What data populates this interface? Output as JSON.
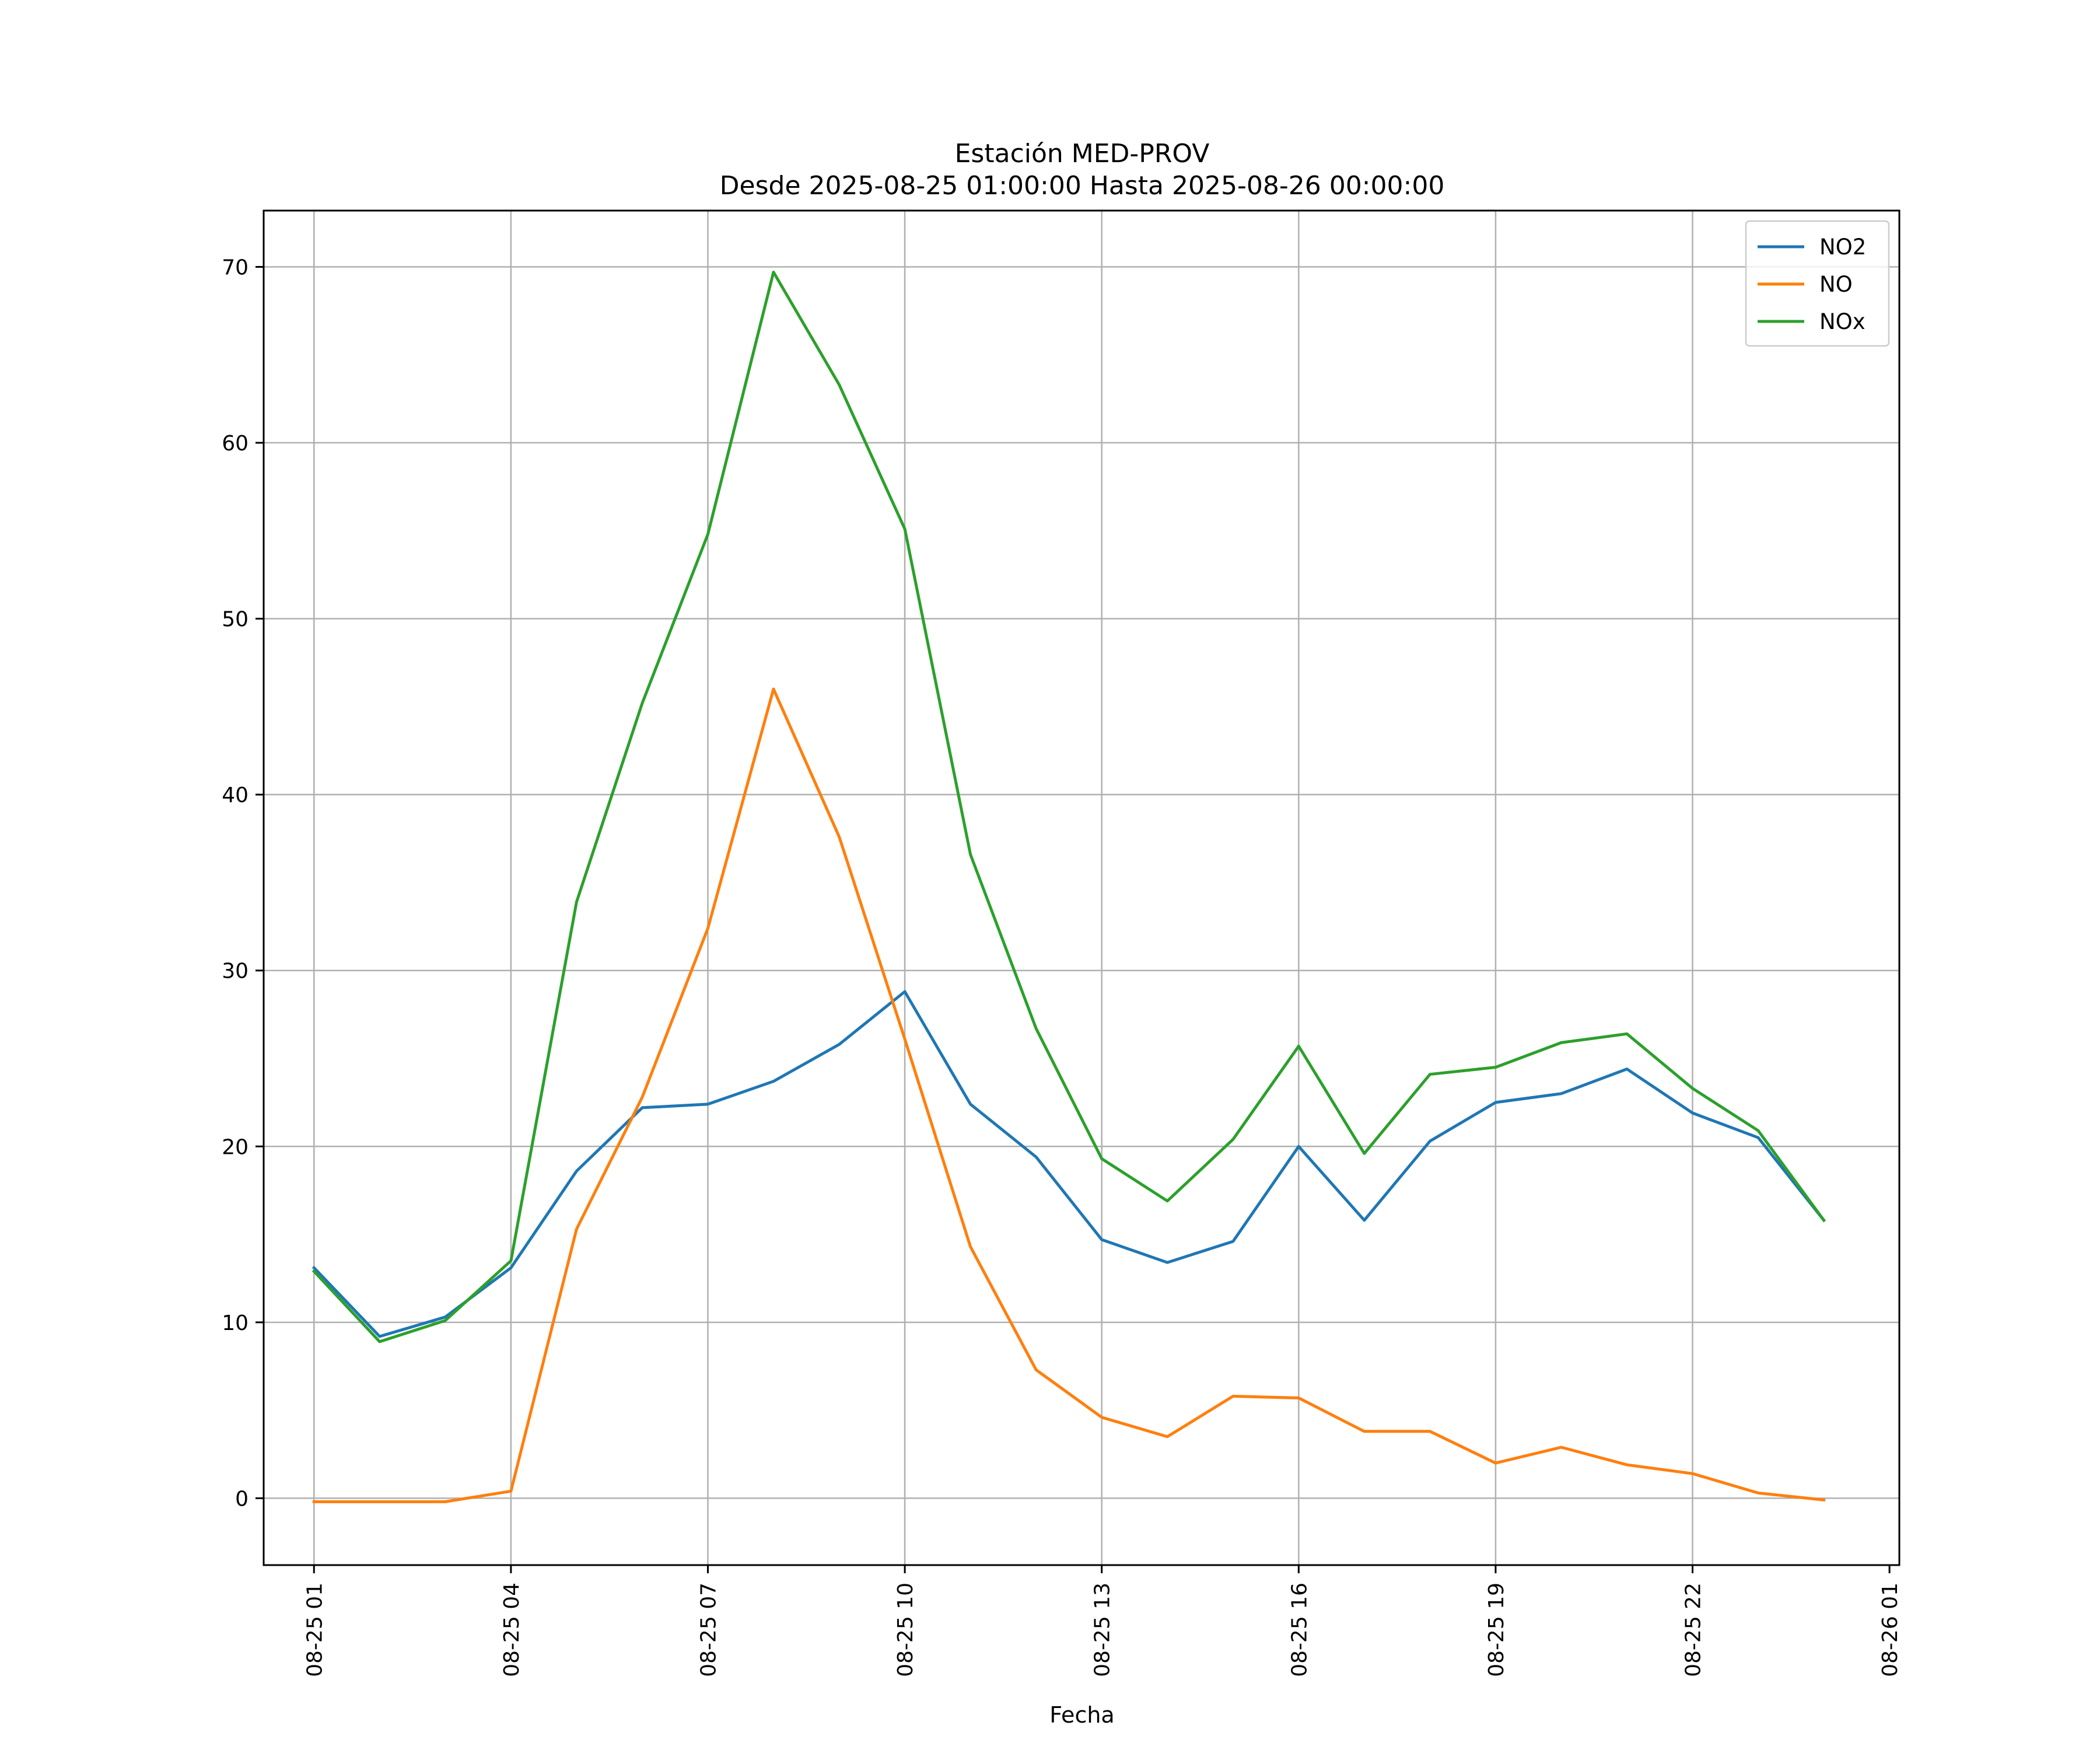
{
  "chart_data": {
    "type": "line",
    "title": "Estación MED-PROV",
    "subtitle": "Desde 2025-08-25 01:00:00 Hasta 2025-08-26 00:00:00",
    "xlabel": "Fecha",
    "ylabel": "",
    "x": [
      "2025-08-25 01:00",
      "2025-08-25 02:00",
      "2025-08-25 03:00",
      "2025-08-25 04:00",
      "2025-08-25 05:00",
      "2025-08-25 06:00",
      "2025-08-25 07:00",
      "2025-08-25 08:00",
      "2025-08-25 09:00",
      "2025-08-25 10:00",
      "2025-08-25 11:00",
      "2025-08-25 12:00",
      "2025-08-25 13:00",
      "2025-08-25 14:00",
      "2025-08-25 15:00",
      "2025-08-25 16:00",
      "2025-08-25 17:00",
      "2025-08-25 18:00",
      "2025-08-25 19:00",
      "2025-08-25 20:00",
      "2025-08-25 21:00",
      "2025-08-25 22:00",
      "2025-08-25 23:00",
      "2025-08-26 00:00"
    ],
    "xlim": [
      "2025-08-25 00:14",
      "2025-08-26 01:09"
    ],
    "xticks": [
      "08-25 01",
      "08-25 04",
      "08-25 07",
      "08-25 10",
      "08-25 13",
      "08-25 16",
      "08-25 19",
      "08-25 22",
      "08-26 01"
    ],
    "xtick_values": [
      "2025-08-25 01:00",
      "2025-08-25 04:00",
      "2025-08-25 07:00",
      "2025-08-25 10:00",
      "2025-08-25 13:00",
      "2025-08-25 16:00",
      "2025-08-25 19:00",
      "2025-08-25 22:00",
      "2025-08-26 01:00"
    ],
    "yticks": [
      0,
      10,
      20,
      30,
      40,
      50,
      60,
      70
    ],
    "ylim": [
      -3.8,
      73.2
    ],
    "grid": true,
    "legend_position": "top-right",
    "series": [
      {
        "name": "NO2",
        "color": "#1f77b4",
        "values": [
          13.1,
          9.2,
          10.3,
          13.1,
          18.6,
          22.2,
          22.4,
          23.7,
          25.8,
          28.8,
          22.4,
          19.4,
          14.7,
          13.4,
          14.6,
          20.0,
          15.8,
          20.3,
          22.5,
          23.0,
          24.4,
          21.9,
          20.5,
          15.8
        ]
      },
      {
        "name": "NO",
        "color": "#ff7f0e",
        "values": [
          -0.2,
          -0.2,
          -0.2,
          0.4,
          15.3,
          22.8,
          32.4,
          46.0,
          37.6,
          26.1,
          14.3,
          7.3,
          4.6,
          3.5,
          5.8,
          5.7,
          3.8,
          3.8,
          2.0,
          2.9,
          1.9,
          1.4,
          0.3,
          -0.1
        ]
      },
      {
        "name": "NOx",
        "color": "#2ca02c",
        "values": [
          12.9,
          8.9,
          10.1,
          13.5,
          33.9,
          45.2,
          54.8,
          69.7,
          63.3,
          55.1,
          36.6,
          26.7,
          19.3,
          16.9,
          20.4,
          25.7,
          19.6,
          24.1,
          24.5,
          25.9,
          26.4,
          23.3,
          20.9,
          15.8
        ]
      }
    ]
  }
}
